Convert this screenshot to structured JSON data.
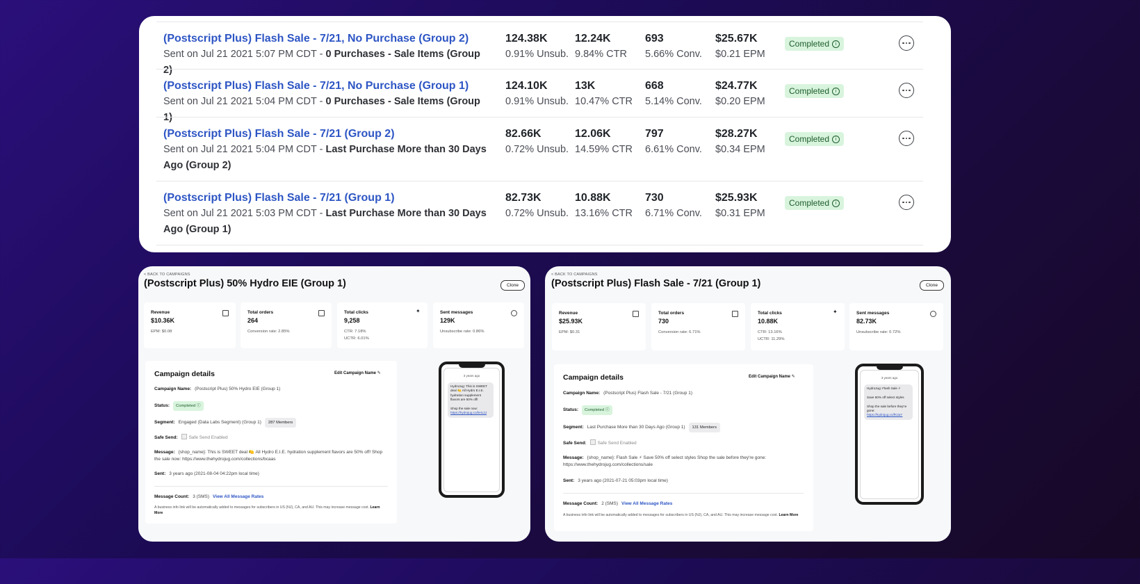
{
  "campaign_list": {
    "rows": [
      {
        "title": "(Postscript Plus) Flash Sale - 7/21, No Purchase (Group 2)",
        "sent_prefix": "Sent on Jul 21 2021 5:07 PM CDT - ",
        "segment": "0 Purchases - Sale Items (Group 2)",
        "sent_count": "124.38K",
        "unsub": "0.91% Unsub.",
        "clicks": "12.24K",
        "ctr": "9.84% CTR",
        "orders": "693",
        "conv": "5.66% Conv.",
        "revenue": "$25.67K",
        "epm": "$0.21 EPM",
        "status": "Completed"
      },
      {
        "title": "(Postscript Plus) Flash Sale - 7/21, No Purchase (Group 1)",
        "sent_prefix": "Sent on Jul 21 2021 5:04 PM CDT - ",
        "segment": "0 Purchases - Sale Items (Group 1)",
        "sent_count": "124.10K",
        "unsub": "0.91% Unsub.",
        "clicks": "13K",
        "ctr": "10.47% CTR",
        "orders": "668",
        "conv": "5.14% Conv.",
        "revenue": "$24.77K",
        "epm": "$0.20 EPM",
        "status": "Completed"
      },
      {
        "title": "(Postscript Plus) Flash Sale - 7/21 (Group 2)",
        "sent_prefix": "Sent on Jul 21 2021 5:04 PM CDT - ",
        "segment": "Last Purchase More than 30 Days Ago (Group 2)",
        "sent_count": "82.66K",
        "unsub": "0.72% Unsub.",
        "clicks": "12.06K",
        "ctr": "14.59% CTR",
        "orders": "797",
        "conv": "6.61% Conv.",
        "revenue": "$28.27K",
        "epm": "$0.34 EPM",
        "status": "Completed"
      },
      {
        "title": "(Postscript Plus) Flash Sale - 7/21 (Group 1)",
        "sent_prefix": "Sent on Jul 21 2021 5:03 PM CDT - ",
        "segment": "Last Purchase More than 30 Days Ago (Group 1)",
        "sent_count": "82.73K",
        "unsub": "0.72% Unsub.",
        "clicks": "10.88K",
        "ctr": "13.16% CTR",
        "orders": "730",
        "conv": "6.71% Conv.",
        "revenue": "$25.93K",
        "epm": "$0.31 EPM",
        "status": "Completed"
      }
    ]
  },
  "left_detail": {
    "back": "< BACK TO CAMPAIGNS",
    "title": "(Postscript Plus) 50% Hydro EIE (Group 1)",
    "clone": "Clone",
    "stats": [
      {
        "label": "Revenue",
        "value": "$10.36K",
        "sub1": "EPM: $0.08",
        "sub2": ""
      },
      {
        "label": "Total orders",
        "value": "264",
        "sub1": "Conversion rate: 2.85%",
        "sub2": ""
      },
      {
        "label": "Total clicks",
        "value": "9,258",
        "sub1": "CTR: 7.18%",
        "sub2": "UCTR: 6.01%"
      },
      {
        "label": "Sent messages",
        "value": "129K",
        "sub1": "Unsubscribe rate: 0.86%",
        "sub2": ""
      }
    ],
    "details_heading": "Campaign details",
    "edit_label": "Edit Campaign Name",
    "name_label": "Campaign Name:",
    "name_value": "(Postscript Plus) 50% Hydro EIE (Group 1)",
    "status_label": "Status:",
    "status_value": "Completed",
    "segment_label": "Segment:",
    "segment_value": "Engaged (Data Labs Segment) (Group 1)",
    "members": "287 Members",
    "safe_label": "Safe Send:",
    "safe_value": "Safe Send Enabled",
    "message_label": "Message:",
    "message_value": "{shop_name}: This is SWEET deal 🍋 All Hydro E.I.E. hydration supplement flavors are 50% off! Shop the sale now: https://www.thehydrojug.com/collections/bcaas",
    "sent_label": "Sent:",
    "sent_value": "3 years ago (2021-08-04 04:22pm local time)",
    "count_label": "Message Count:",
    "count_value": "3 (SMS)",
    "rates_link": "View All Message Rates",
    "note": "A business info link will be automatically added to messages for subscribers in US (NJ), CA, and AU. This may increase message cost.",
    "learn_more": "Learn More",
    "phone_time": "3 years ago",
    "phone_msg": "HydroJug: This is SWEET deal 🍋 All Hydro E.I.E. hydration supplement flavors are 50% off!\n\nShop the sale now:",
    "phone_link": "https://hydrojug.co/bHL2J"
  },
  "right_detail": {
    "back": "< BACK TO CAMPAIGNS",
    "title": "(Postscript Plus) Flash Sale - 7/21 (Group 1)",
    "clone": "Clone",
    "stats": [
      {
        "label": "Revenue",
        "value": "$25.93K",
        "sub1": "EPM: $0.31",
        "sub2": ""
      },
      {
        "label": "Total orders",
        "value": "730",
        "sub1": "Conversion rate: 6.71%",
        "sub2": ""
      },
      {
        "label": "Total clicks",
        "value": "10.88K",
        "sub1": "CTR: 13.16%",
        "sub2": "UCTR: 11.29%"
      },
      {
        "label": "Sent messages",
        "value": "82.73K",
        "sub1": "Unsubscribe rate: 0.72%",
        "sub2": ""
      }
    ],
    "details_heading": "Campaign details",
    "edit_label": "Edit Campaign Name",
    "name_label": "Campaign Name:",
    "name_value": "(Postscript Plus) Flash Sale - 7/21 (Group 1)",
    "status_label": "Status:",
    "status_value": "Completed",
    "segment_label": "Segment:",
    "segment_value": "Last Purchase More than 30 Days Ago (Group 1)",
    "members": "131 Members",
    "safe_label": "Safe Send:",
    "safe_value": "Safe Send Enabled",
    "message_label": "Message:",
    "message_value": "{shop_name}: Flash Sale ⚡ Save 50% off select styles Shop the sale before they're gone: https://www.thehydrojug.com/collections/sale",
    "sent_label": "Sent:",
    "sent_value": "3 years ago (2021-07-21 05:03pm local time)",
    "count_label": "Message Count:",
    "count_value": "2 (SMS)",
    "rates_link": "View All Message Rates",
    "note": "A business info link will be automatically added to messages for subscribers in US (NJ), CA, and AU. This may increase message cost.",
    "learn_more": "Learn More",
    "phone_time": "3 years ago",
    "phone_msg": "HydroJug: Flash Sale ⚡\n\nSave 50% off select styles\n\nShop the sale before they're gone:",
    "phone_link": "https://hydrojug.co/fK3aY"
  }
}
